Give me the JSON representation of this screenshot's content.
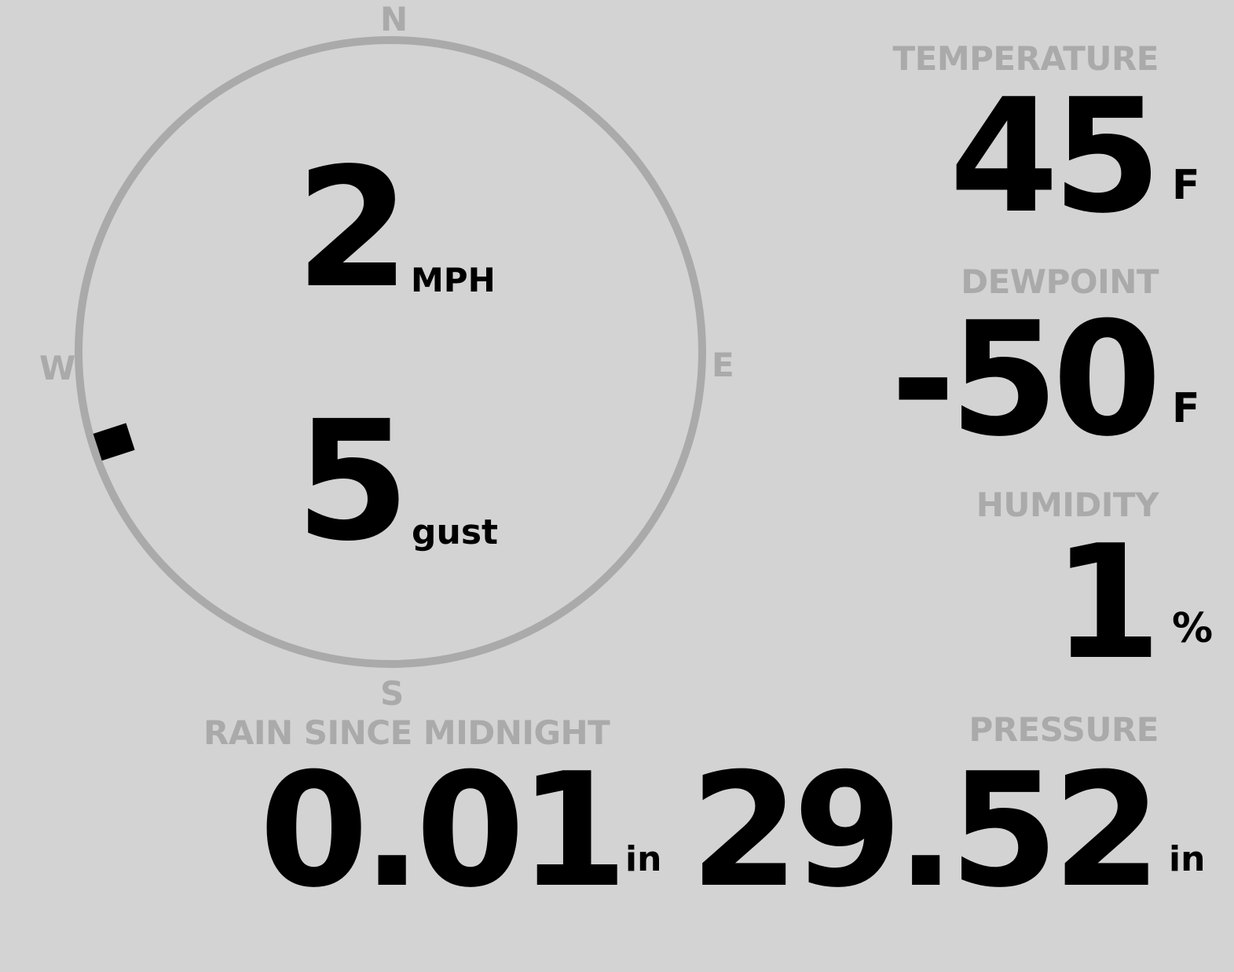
{
  "wind": {
    "speed": "2",
    "speed_unit": "MPH",
    "gust": "5",
    "gust_label": "gust",
    "direction_degrees": 252,
    "compass": {
      "n": "N",
      "e": "E",
      "s": "S",
      "w": "W"
    }
  },
  "temperature": {
    "label": "TEMPERATURE",
    "value": "45",
    "unit": "F"
  },
  "dewpoint": {
    "label": "DEWPOINT",
    "value": "-50",
    "unit": "F"
  },
  "humidity": {
    "label": "HUMIDITY",
    "value": "1",
    "unit": "%"
  },
  "rain": {
    "label": "RAIN SINCE MIDNIGHT",
    "value": "0.01",
    "unit": "in"
  },
  "pressure": {
    "label": "PRESSURE",
    "value": "29.52",
    "unit": "in"
  },
  "colors": {
    "background": "#d3d3d3",
    "label": "#aaaaaa",
    "value": "#000000",
    "ring": "#aaaaaa"
  }
}
